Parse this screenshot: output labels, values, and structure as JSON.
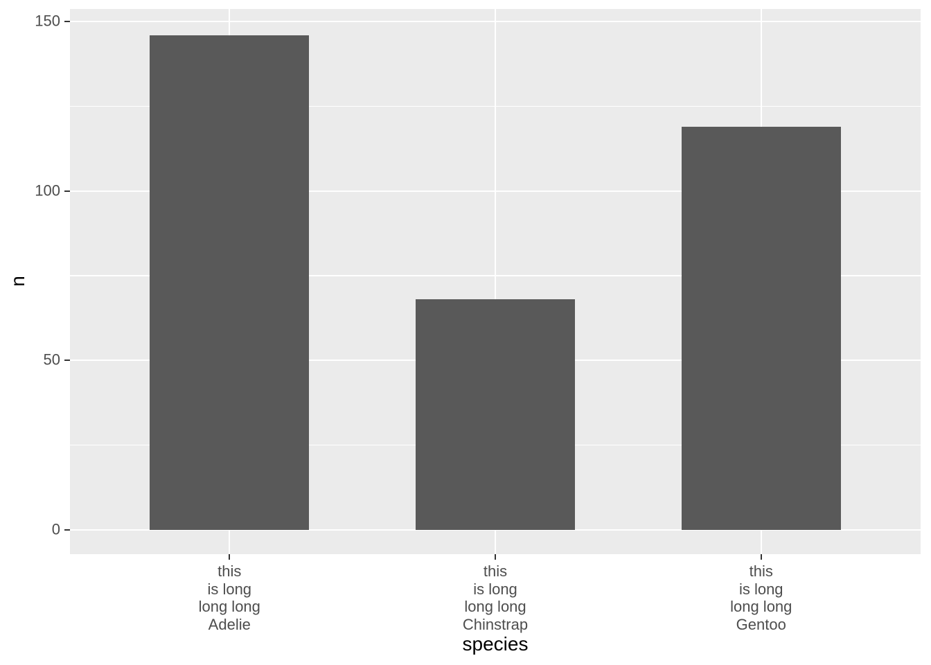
{
  "chart_data": {
    "type": "bar",
    "title": "",
    "xlabel": "species",
    "ylabel": "n",
    "categories": [
      {
        "name": "Adelie",
        "lines": [
          "this",
          "is long",
          "long long",
          "Adelie"
        ]
      },
      {
        "name": "Chinstrap",
        "lines": [
          "this",
          "is long",
          "long long",
          "Chinstrap"
        ]
      },
      {
        "name": "Gentoo",
        "lines": [
          "this",
          "is long",
          "long long",
          "Gentoo"
        ]
      }
    ],
    "values": [
      146,
      68,
      119
    ],
    "ylim": [
      0,
      150
    ],
    "y_major_ticks": [
      0,
      50,
      100,
      150
    ],
    "y_minor_ticks": [
      25,
      75,
      125
    ],
    "grid": "horizontal major+minor white lines, vertical major white line at each category, no legend",
    "legend": "none",
    "colors": {
      "bar_fill": "#595959",
      "panel_background": "#EBEBEB",
      "gridline": "#FFFFFF",
      "axis_text": "#4D4D4D",
      "axis_title": "#000000",
      "tick_mark": "#333333",
      "figure_background": "#FFFFFF"
    }
  }
}
